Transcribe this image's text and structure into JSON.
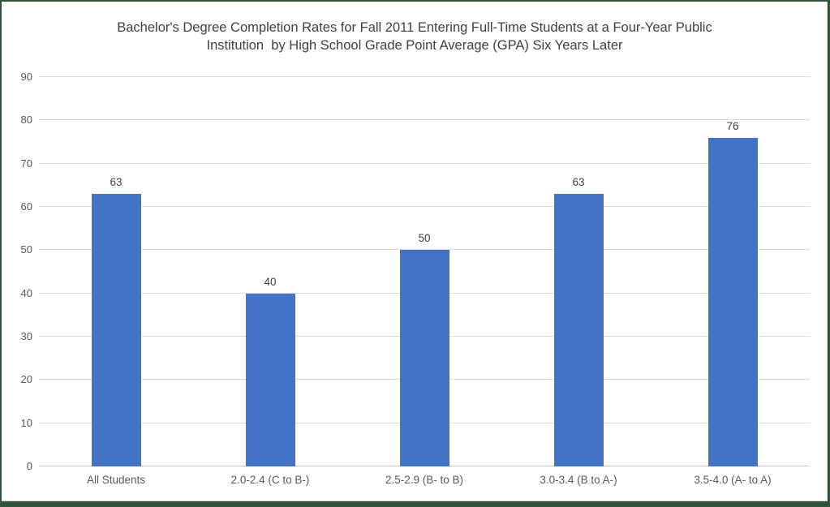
{
  "window": {
    "background_color": "#ffffff",
    "frame_border_color": "#33523a"
  },
  "chart_data": {
    "type": "bar",
    "title": "Bachelor's Degree Completion Rates for Fall 2011 Entering Full-Time Students at a Four-Year Public Institution  by High School Grade Point Average (GPA) Six Years Later",
    "title_lines": [
      "Bachelor's Degree Completion Rates for Fall 2011 Entering Full-Time Students at a Four-Year Public",
      "Institution  by High School Grade Point Average (GPA) Six Years Later"
    ],
    "categories": [
      "All Students",
      "2.0-2.4 (C to B-)",
      "2.5-2.9 (B- to B)",
      "3.0-3.4 (B to A-)",
      "3.5-4.0 (A- to A)"
    ],
    "values": [
      63,
      40,
      50,
      63,
      76
    ],
    "data_labels": [
      "63",
      "40",
      "50",
      "63",
      "76"
    ],
    "yticks": [
      0,
      10,
      20,
      30,
      40,
      50,
      60,
      70,
      80,
      90
    ],
    "ylim": [
      0,
      90
    ],
    "xlabel": "",
    "ylabel": "",
    "legend": "none",
    "grid": "horizontal",
    "colors": {
      "bar": "#4472c4",
      "gridline": "#d9d9d9",
      "tick_label": "#595959",
      "title": "#404040",
      "data_label": "#404040"
    }
  }
}
